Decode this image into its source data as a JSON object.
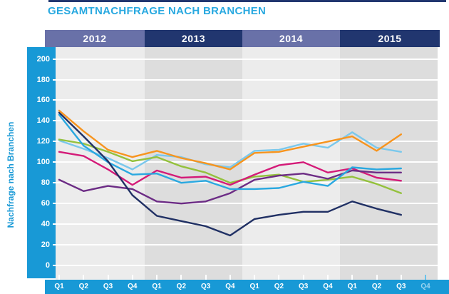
{
  "title": "GESAMTNACHFRAGE NACH BRANCHEN",
  "y_axis": {
    "label": "Nachfrage nach Branchen",
    "tick_labels": [
      "200",
      "180",
      "160",
      "140",
      "120",
      "100",
      "80",
      "60",
      "40",
      "20",
      "0"
    ]
  },
  "x_axis": {
    "labels": [
      "Q1",
      "Q2",
      "Q3",
      "Q4",
      "Q1",
      "Q2",
      "Q3",
      "Q4",
      "Q1",
      "Q2",
      "Q3",
      "Q4",
      "Q1",
      "Q2",
      "Q3",
      "Q4"
    ],
    "faded_last_label": true
  },
  "year_header": {
    "years": [
      "2012",
      "2013",
      "2014",
      "2015"
    ]
  },
  "colors": {
    "title": "#29A9E0",
    "axis_band": "#1899D6",
    "top_strip": "#21366F",
    "year_band_light": "#6971A8",
    "year_band_dark": "#21366F",
    "plot_band_light": "#ECECEC",
    "plot_band_dark": "#DDDDDD",
    "gridline": "#FFFFFF",
    "faded_tick": "#6BC2EA",
    "faded_label": "#9AD4F0"
  },
  "chart_data": {
    "type": "line",
    "title": "GESAMTNACHFRAGE NACH BRANCHEN",
    "ylabel": "Nachfrage nach Branchen",
    "ylim": [
      0,
      200
    ],
    "ytick_step": 20,
    "grid": true,
    "legend": "none",
    "x_categories": [
      "2012 Q1",
      "2012 Q2",
      "2012 Q3",
      "2012 Q4",
      "2013 Q1",
      "2013 Q2",
      "2013 Q3",
      "2013 Q4",
      "2014 Q1",
      "2014 Q2",
      "2014 Q3",
      "2014 Q4",
      "2015 Q1",
      "2015 Q2",
      "2015 Q3"
    ],
    "note": "16th tick (2015 Q4) shown faded with no data",
    "series": [
      {
        "name": "sky-blue-line",
        "color": "#7AC8EC",
        "values": [
          121,
          113,
          104,
          93,
          107,
          105,
          98,
          95,
          111,
          112,
          118,
          114,
          129,
          114,
          110
        ]
      },
      {
        "name": "green-line",
        "color": "#94C13D",
        "values": [
          122,
          118,
          110,
          101,
          105,
          96,
          90,
          80,
          86,
          88,
          81,
          83,
          86,
          79,
          70
        ]
      },
      {
        "name": "magenta-line",
        "color": "#D41A78",
        "values": [
          110,
          106,
          93,
          78,
          92,
          85,
          86,
          78,
          88,
          97,
          100,
          90,
          94,
          85,
          82
        ]
      },
      {
        "name": "purple-line",
        "color": "#6C2C85",
        "values": [
          83,
          72,
          77,
          74,
          62,
          60,
          62,
          70,
          83,
          87,
          89,
          84,
          92,
          90,
          90
        ]
      },
      {
        "name": "blue-line",
        "color": "#29A8E0",
        "values": [
          146,
          116,
          100,
          88,
          89,
          80,
          82,
          74,
          74,
          75,
          81,
          77,
          95,
          93,
          94
        ]
      },
      {
        "name": "navy-line",
        "color": "#203064",
        "values": [
          148,
          125,
          101,
          68,
          48,
          43,
          38,
          29,
          45,
          49,
          52,
          52,
          62,
          55,
          49
        ]
      },
      {
        "name": "orange-line",
        "color": "#F7941E",
        "values": [
          150,
          130,
          112,
          105,
          111,
          104,
          99,
          93,
          109,
          110,
          115,
          120,
          125,
          111,
          127
        ]
      }
    ]
  }
}
